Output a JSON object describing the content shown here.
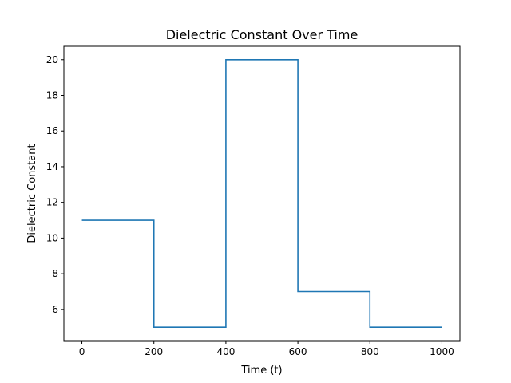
{
  "chart_data": {
    "type": "line",
    "title": "Dielectric Constant Over Time",
    "xlabel": "Time (t)",
    "ylabel": "Dielectric Constant",
    "xlim": [
      -50,
      1050
    ],
    "ylim": [
      4.25,
      20.75
    ],
    "xticks": [
      0,
      200,
      400,
      600,
      800,
      1000
    ],
    "yticks": [
      6,
      8,
      10,
      12,
      14,
      16,
      18,
      20
    ],
    "grid": false,
    "series": [
      {
        "color": "#1f77b4",
        "x": [
          0,
          200,
          200,
          400,
          400,
          600,
          600,
          800,
          800,
          1000
        ],
        "y": [
          11,
          11,
          5,
          5,
          20,
          20,
          7,
          7,
          5,
          5
        ]
      }
    ]
  }
}
